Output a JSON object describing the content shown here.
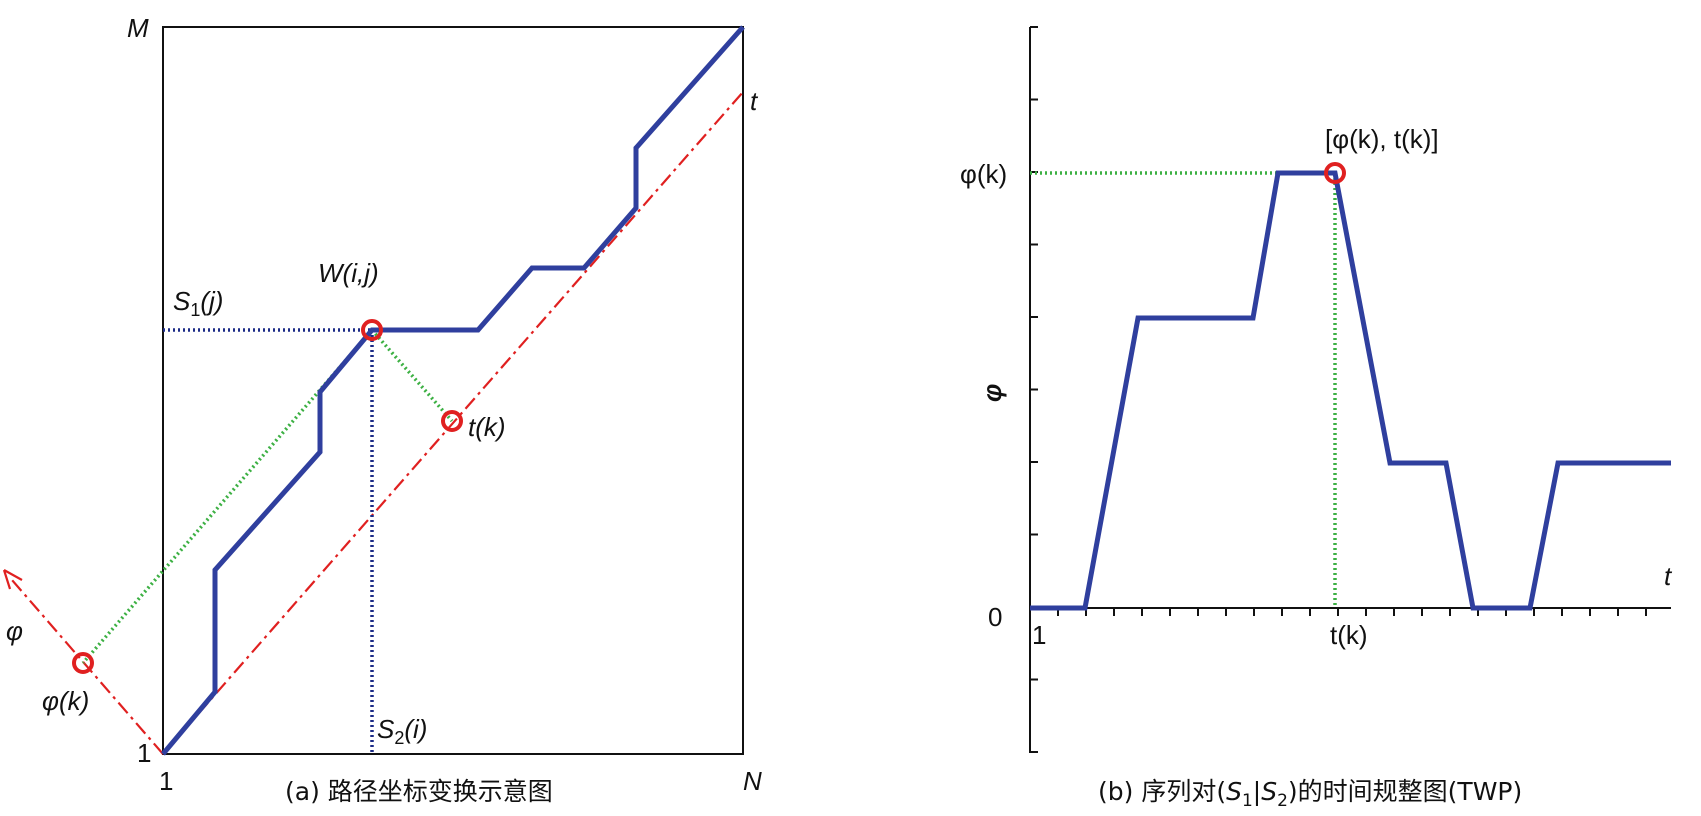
{
  "panel_a": {
    "corner_top": "M",
    "diag_label": "t",
    "origin_y": "1",
    "origin_x": "1",
    "corner_right": "N",
    "s1_label": "S",
    "s1_sub": "1",
    "s1_arg": "(j)",
    "w_label": "W(i,j)",
    "tk_label": "t(k)",
    "phi_axis": "φ",
    "phik_label": "φ(k)",
    "s2_label": "S",
    "s2_sub": "2",
    "s2_arg": "(i)",
    "caption": "(a) 路径坐标变换示意图"
  },
  "panel_b": {
    "point_label": "[φ(k), t(k)]",
    "y_tick": "φ(k)",
    "y_axis": "φ",
    "zero": "0",
    "x_start": "1",
    "x_axis": "t",
    "x_tick": "t(k)",
    "caption_pre": "(b) 序列对(",
    "caption_s1": "S",
    "caption_s1_sub": "1",
    "caption_bar": "|",
    "caption_s2": "S",
    "caption_s2_sub": "2",
    "caption_post": ")的时间规整图(TWP)"
  },
  "colors": {
    "path": "#2f3f9e",
    "diagonal": "#e02020",
    "green": "#3cb043",
    "navy_dotted": "#1b2a86",
    "marker": "#e02020"
  }
}
